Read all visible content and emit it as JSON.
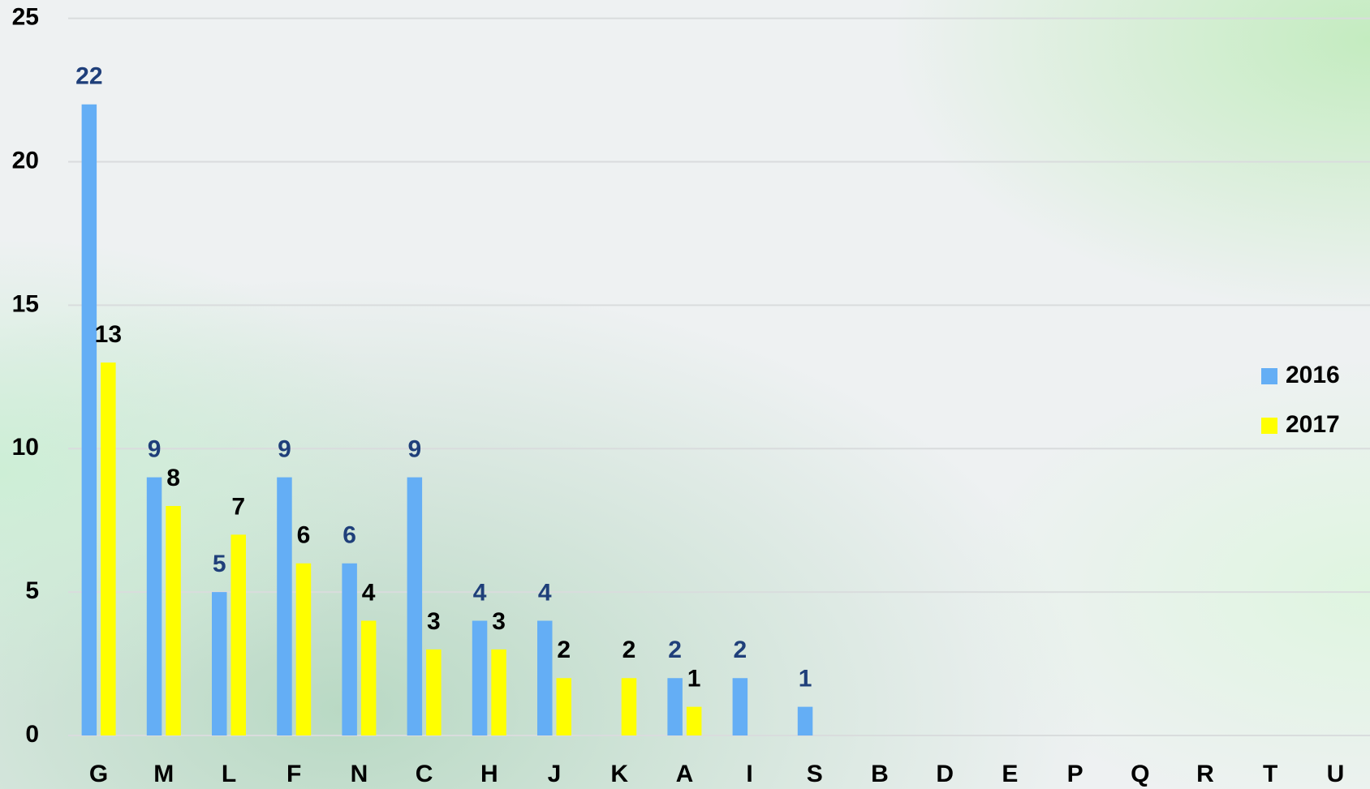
{
  "chart_data": {
    "type": "bar",
    "categories": [
      "G",
      "M",
      "L",
      "F",
      "N",
      "C",
      "H",
      "J",
      "K",
      "A",
      "I",
      "S",
      "B",
      "D",
      "E",
      "P",
      "Q",
      "R",
      "T",
      "U"
    ],
    "series": [
      {
        "name": "2016",
        "color": "#64aef5",
        "label_color": "#1f3f7a",
        "values": [
          22,
          9,
          5,
          9,
          6,
          9,
          4,
          4,
          null,
          2,
          2,
          1,
          null,
          null,
          null,
          null,
          null,
          null,
          null,
          null
        ]
      },
      {
        "name": "2017",
        "color": "#ffff00",
        "label_color": "#000000",
        "values": [
          13,
          8,
          7,
          6,
          4,
          3,
          3,
          2,
          2,
          1,
          null,
          null,
          null,
          null,
          null,
          null,
          null,
          null,
          null,
          null
        ]
      }
    ],
    "ylim": [
      0,
      25
    ],
    "yticks": [
      0,
      5,
      10,
      15,
      20,
      25
    ],
    "grid": true,
    "legend": "right"
  }
}
